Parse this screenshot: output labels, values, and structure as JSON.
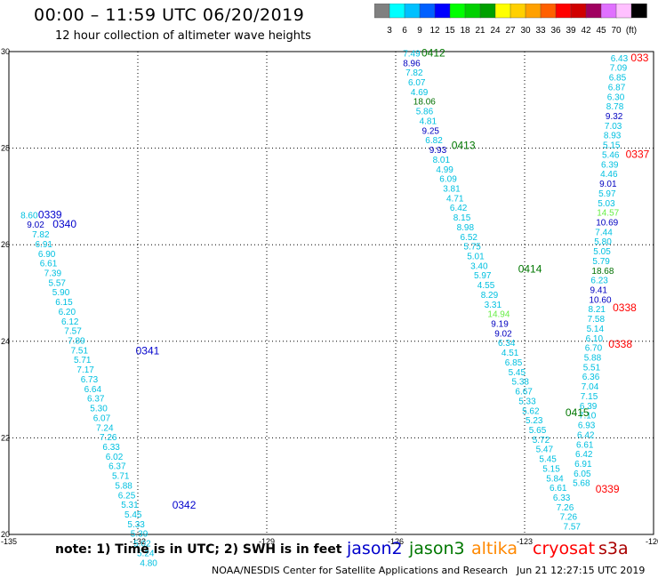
{
  "header": {
    "title": "00:00 – 11:59 UTC 06/20/2019",
    "subtitle": "12 hour collection of altimeter wave heights"
  },
  "colorbar": {
    "colors": [
      "#808080",
      "#00ffff",
      "#00c0ff",
      "#0060ff",
      "#0000ff",
      "#00ff00",
      "#00d000",
      "#00a000",
      "#ffff00",
      "#ffd000",
      "#ffa000",
      "#ff6000",
      "#ff0000",
      "#d00000",
      "#a00060",
      "#e070ff",
      "#ffc0ff",
      "#000000"
    ],
    "labels": [
      "3",
      "6",
      "9",
      "12",
      "15",
      "18",
      "21",
      "24",
      "27",
      "30",
      "33",
      "36",
      "39",
      "42",
      "45",
      "70",
      "(ft)"
    ]
  },
  "axes": {
    "x_ticks": [
      "-135",
      "-132",
      "-129",
      "-126",
      "-123",
      "-120"
    ],
    "y_ticks": [
      "30",
      "28",
      "26",
      "24",
      "22",
      "20"
    ]
  },
  "colors": {
    "jason2": "#0000cc",
    "jason3": "#007700",
    "altika": "#ff8800",
    "cryosat": "#ff0000",
    "s3a": "#cc0000",
    "value_light": "#00c0e0",
    "value_dark": "#0000c0",
    "value_green": "#007000",
    "value_lime": "#66ee44"
  },
  "tracks": [
    {
      "label": "0339",
      "label_color": "#0000cc",
      "label_lon": -134.32,
      "label_lat": 26.55
    },
    {
      "label": "0340",
      "label_color": "#0000cc",
      "label_lon": -133.98,
      "label_lat": 26.35
    },
    {
      "label": "0341",
      "label_color": "#0000cc",
      "label_lon": -132.05,
      "label_lat": 23.73
    },
    {
      "label": "0342",
      "label_color": "#0000cc",
      "label_lon": -131.2,
      "label_lat": 20.53
    },
    {
      "label": "0412",
      "label_color": "#007700",
      "label_lon": -125.4,
      "label_lat": 29.9
    },
    {
      "label": "0413",
      "label_color": "#007700",
      "label_lon": -124.7,
      "label_lat": 27.98
    },
    {
      "label": "0414",
      "label_color": "#007700",
      "label_lon": -123.15,
      "label_lat": 25.42
    },
    {
      "label": "0415",
      "label_color": "#007700",
      "label_lon": -122.05,
      "label_lat": 22.45
    },
    {
      "label": "033",
      "label_color": "#ff0000",
      "label_lon": -120.53,
      "label_lat": 29.8
    },
    {
      "label": "0337",
      "label_color": "#ff0000",
      "label_lon": -120.65,
      "label_lat": 27.8
    },
    {
      "label": "0338",
      "label_color": "#ff0000",
      "label_lon": -120.95,
      "label_lat": 24.62
    },
    {
      "label": "0338",
      "label_color": "#ff0000",
      "label_lon": -121.05,
      "label_lat": 23.87
    },
    {
      "label": "0339",
      "label_color": "#ff0000",
      "label_lon": -121.35,
      "label_lat": 20.87
    }
  ],
  "wave_heights": {
    "track_0339": {
      "color_key": "value_light",
      "points": [
        {
          "lon": -134.73,
          "lat": 26.55,
          "v": "8.60",
          "c": "value_light"
        },
        {
          "lon": -134.58,
          "lat": 26.35,
          "v": "9.02",
          "c": "value_dark"
        },
        {
          "lon": -134.46,
          "lat": 26.15,
          "v": "7.82",
          "c": "value_light"
        },
        {
          "lon": -134.39,
          "lat": 25.95,
          "v": "6.91",
          "c": "value_light"
        },
        {
          "lon": -134.32,
          "lat": 25.75,
          "v": "6.90",
          "c": "value_light"
        },
        {
          "lon": -134.28,
          "lat": 25.55,
          "v": "6.61",
          "c": "value_light"
        },
        {
          "lon": -134.18,
          "lat": 25.35,
          "v": "7.39",
          "c": "value_light"
        },
        {
          "lon": -134.08,
          "lat": 25.15,
          "v": "5.57",
          "c": "value_light"
        },
        {
          "lon": -133.99,
          "lat": 24.95,
          "v": "5.90",
          "c": "value_light"
        },
        {
          "lon": -133.92,
          "lat": 24.75,
          "v": "6.15",
          "c": "value_light"
        },
        {
          "lon": -133.85,
          "lat": 24.55,
          "v": "6.20",
          "c": "value_light"
        },
        {
          "lon": -133.78,
          "lat": 24.35,
          "v": "6.12",
          "c": "value_light"
        },
        {
          "lon": -133.71,
          "lat": 24.15,
          "v": "7.57",
          "c": "value_light"
        },
        {
          "lon": -133.63,
          "lat": 23.95,
          "v": "7.89",
          "c": "value_light"
        },
        {
          "lon": -133.56,
          "lat": 23.75,
          "v": "7.51",
          "c": "value_light"
        },
        {
          "lon": -133.49,
          "lat": 23.55,
          "v": "5.71",
          "c": "value_light"
        },
        {
          "lon": -133.42,
          "lat": 23.35,
          "v": "7.17",
          "c": "value_light"
        },
        {
          "lon": -133.33,
          "lat": 23.15,
          "v": "6.73",
          "c": "value_light"
        },
        {
          "lon": -133.25,
          "lat": 22.95,
          "v": "6.64",
          "c": "value_light"
        },
        {
          "lon": -133.18,
          "lat": 22.75,
          "v": "6.37",
          "c": "value_light"
        },
        {
          "lon": -133.11,
          "lat": 22.55,
          "v": "5.30",
          "c": "value_light"
        },
        {
          "lon": -133.04,
          "lat": 22.35,
          "v": "6.07",
          "c": "value_light"
        },
        {
          "lon": -132.97,
          "lat": 22.15,
          "v": "7.24",
          "c": "value_light"
        },
        {
          "lon": -132.89,
          "lat": 21.95,
          "v": "7.26",
          "c": "value_light"
        },
        {
          "lon": -132.82,
          "lat": 21.75,
          "v": "6.33",
          "c": "value_light"
        },
        {
          "lon": -132.75,
          "lat": 21.55,
          "v": "6.02",
          "c": "value_light"
        },
        {
          "lon": -132.68,
          "lat": 21.35,
          "v": "6.37",
          "c": "value_light"
        },
        {
          "lon": -132.6,
          "lat": 21.15,
          "v": "5.71",
          "c": "value_light"
        },
        {
          "lon": -132.53,
          "lat": 20.95,
          "v": "5.88",
          "c": "value_light"
        },
        {
          "lon": -132.46,
          "lat": 20.75,
          "v": "6.25",
          "c": "value_light"
        },
        {
          "lon": -132.39,
          "lat": 20.55,
          "v": "5.31",
          "c": "value_light"
        },
        {
          "lon": -132.31,
          "lat": 20.35,
          "v": "5.45",
          "c": "value_light"
        },
        {
          "lon": -132.24,
          "lat": 20.15,
          "v": "5.33",
          "c": "value_light"
        },
        {
          "lon": -132.17,
          "lat": 19.95,
          "v": "5.39",
          "c": "value_light"
        },
        {
          "lon": -132.1,
          "lat": 19.75,
          "v": "5.02",
          "c": "value_light"
        },
        {
          "lon": -132.02,
          "lat": 19.55,
          "v": "5.24",
          "c": "value_light"
        },
        {
          "lon": -131.95,
          "lat": 19.35,
          "v": "4.80",
          "c": "value_light"
        }
      ]
    },
    "track_0412": {
      "color_key": "value_light",
      "points": [
        {
          "lon": -125.83,
          "lat": 29.9,
          "v": "7.49",
          "c": "value_light"
        },
        {
          "lon": -125.83,
          "lat": 29.7,
          "v": "8.96",
          "c": "value_dark"
        },
        {
          "lon": -125.77,
          "lat": 29.5,
          "v": "7.82",
          "c": "value_light"
        },
        {
          "lon": -125.71,
          "lat": 29.3,
          "v": "6.07",
          "c": "value_light"
        },
        {
          "lon": -125.65,
          "lat": 29.1,
          "v": "4.69",
          "c": "value_light"
        },
        {
          "lon": -125.59,
          "lat": 28.9,
          "v": "18.06",
          "c": "value_green"
        },
        {
          "lon": -125.53,
          "lat": 28.7,
          "v": "5.86",
          "c": "value_light"
        },
        {
          "lon": -125.45,
          "lat": 28.5,
          "v": "4.81",
          "c": "value_light"
        },
        {
          "lon": -125.39,
          "lat": 28.3,
          "v": "9.25",
          "c": "value_dark"
        },
        {
          "lon": -125.31,
          "lat": 28.1,
          "v": "6.82",
          "c": "value_light"
        },
        {
          "lon": -125.22,
          "lat": 27.9,
          "v": "9.93",
          "c": "value_dark"
        },
        {
          "lon": -125.14,
          "lat": 27.7,
          "v": "8.01",
          "c": "value_light"
        },
        {
          "lon": -125.06,
          "lat": 27.5,
          "v": "4.99",
          "c": "value_light"
        },
        {
          "lon": -124.98,
          "lat": 27.3,
          "v": "6.09",
          "c": "value_light"
        },
        {
          "lon": -124.9,
          "lat": 27.1,
          "v": "3.81",
          "c": "value_light"
        },
        {
          "lon": -124.82,
          "lat": 26.9,
          "v": "4.71",
          "c": "value_light"
        },
        {
          "lon": -124.74,
          "lat": 26.7,
          "v": "6.42",
          "c": "value_light"
        },
        {
          "lon": -124.66,
          "lat": 26.5,
          "v": "8.15",
          "c": "value_light"
        },
        {
          "lon": -124.58,
          "lat": 26.3,
          "v": "8.98",
          "c": "value_light"
        },
        {
          "lon": -124.5,
          "lat": 26.1,
          "v": "6.52",
          "c": "value_light"
        },
        {
          "lon": -124.42,
          "lat": 25.9,
          "v": "5.75",
          "c": "value_light"
        },
        {
          "lon": -124.34,
          "lat": 25.7,
          "v": "5.01",
          "c": "value_light"
        },
        {
          "lon": -124.26,
          "lat": 25.5,
          "v": "3.40",
          "c": "value_light"
        },
        {
          "lon": -124.18,
          "lat": 25.3,
          "v": "5.97",
          "c": "value_light"
        },
        {
          "lon": -124.1,
          "lat": 25.1,
          "v": "4.55",
          "c": "value_light"
        },
        {
          "lon": -124.02,
          "lat": 24.9,
          "v": "8.29",
          "c": "value_light"
        },
        {
          "lon": -123.94,
          "lat": 24.7,
          "v": "3.31",
          "c": "value_light"
        },
        {
          "lon": -123.86,
          "lat": 24.5,
          "v": "14.94",
          "c": "value_lime"
        },
        {
          "lon": -123.78,
          "lat": 24.3,
          "v": "9.19",
          "c": "value_dark"
        },
        {
          "lon": -123.7,
          "lat": 24.1,
          "v": "9.02",
          "c": "value_dark"
        },
        {
          "lon": -123.62,
          "lat": 23.9,
          "v": "6.34",
          "c": "value_light"
        },
        {
          "lon": -123.54,
          "lat": 23.7,
          "v": "4.51",
          "c": "value_light"
        },
        {
          "lon": -123.46,
          "lat": 23.5,
          "v": "6.85",
          "c": "value_light"
        },
        {
          "lon": -123.38,
          "lat": 23.3,
          "v": "5.45",
          "c": "value_light"
        },
        {
          "lon": -123.3,
          "lat": 23.1,
          "v": "5.38",
          "c": "value_light"
        },
        {
          "lon": -123.22,
          "lat": 22.9,
          "v": "6.67",
          "c": "value_light"
        },
        {
          "lon": -123.14,
          "lat": 22.7,
          "v": "5.33",
          "c": "value_light"
        },
        {
          "lon": -123.06,
          "lat": 22.5,
          "v": "5.62",
          "c": "value_light"
        },
        {
          "lon": -122.98,
          "lat": 22.3,
          "v": "5.23",
          "c": "value_light"
        },
        {
          "lon": -122.9,
          "lat": 22.1,
          "v": "5.65",
          "c": "value_light"
        },
        {
          "lon": -122.82,
          "lat": 21.9,
          "v": "5.72",
          "c": "value_light"
        },
        {
          "lon": -122.74,
          "lat": 21.7,
          "v": "5.47",
          "c": "value_light"
        },
        {
          "lon": -122.66,
          "lat": 21.5,
          "v": "5.45",
          "c": "value_light"
        },
        {
          "lon": -122.58,
          "lat": 21.3,
          "v": "5.15",
          "c": "value_light"
        },
        {
          "lon": -122.5,
          "lat": 21.1,
          "v": "5.84",
          "c": "value_light"
        },
        {
          "lon": -122.42,
          "lat": 20.9,
          "v": "6.61",
          "c": "value_light"
        },
        {
          "lon": -122.34,
          "lat": 20.7,
          "v": "6.33",
          "c": "value_light"
        },
        {
          "lon": -122.26,
          "lat": 20.5,
          "v": "7.26",
          "c": "value_light"
        },
        {
          "lon": -122.18,
          "lat": 20.3,
          "v": "7.26",
          "c": "value_light"
        },
        {
          "lon": -122.1,
          "lat": 20.1,
          "v": "7.57",
          "c": "value_light"
        }
      ]
    },
    "track_033": {
      "color_key": "value_light",
      "points": [
        {
          "lon": -121.0,
          "lat": 29.8,
          "v": "6.43",
          "c": "value_light"
        },
        {
          "lon": -121.02,
          "lat": 29.6,
          "v": "7.09",
          "c": "value_light"
        },
        {
          "lon": -121.04,
          "lat": 29.4,
          "v": "6.85",
          "c": "value_light"
        },
        {
          "lon": -121.06,
          "lat": 29.2,
          "v": "6.87",
          "c": "value_light"
        },
        {
          "lon": -121.08,
          "lat": 29.0,
          "v": "6.30",
          "c": "value_light"
        },
        {
          "lon": -121.1,
          "lat": 28.8,
          "v": "8.78",
          "c": "value_light"
        },
        {
          "lon": -121.12,
          "lat": 28.6,
          "v": "9.32",
          "c": "value_dark"
        },
        {
          "lon": -121.14,
          "lat": 28.4,
          "v": "7.03",
          "c": "value_light"
        },
        {
          "lon": -121.16,
          "lat": 28.2,
          "v": "8.93",
          "c": "value_light"
        },
        {
          "lon": -121.18,
          "lat": 28.0,
          "v": "5.15",
          "c": "value_light"
        },
        {
          "lon": -121.2,
          "lat": 27.8,
          "v": "5.46",
          "c": "value_light"
        },
        {
          "lon": -121.22,
          "lat": 27.6,
          "v": "6.39",
          "c": "value_light"
        },
        {
          "lon": -121.24,
          "lat": 27.4,
          "v": "4.46",
          "c": "value_light"
        },
        {
          "lon": -121.26,
          "lat": 27.2,
          "v": "9.01",
          "c": "value_dark"
        },
        {
          "lon": -121.28,
          "lat": 27.0,
          "v": "5.97",
          "c": "value_light"
        },
        {
          "lon": -121.3,
          "lat": 26.8,
          "v": "5.03",
          "c": "value_light"
        },
        {
          "lon": -121.32,
          "lat": 26.6,
          "v": "14.57",
          "c": "value_lime"
        },
        {
          "lon": -121.34,
          "lat": 26.4,
          "v": "10.69",
          "c": "value_dark"
        },
        {
          "lon": -121.36,
          "lat": 26.2,
          "v": "7.44",
          "c": "value_light"
        },
        {
          "lon": -121.38,
          "lat": 26.0,
          "v": "5.80",
          "c": "value_light"
        },
        {
          "lon": -121.4,
          "lat": 25.8,
          "v": "5.05",
          "c": "value_light"
        },
        {
          "lon": -121.42,
          "lat": 25.6,
          "v": "5.79",
          "c": "value_light"
        },
        {
          "lon": -121.44,
          "lat": 25.4,
          "v": "18.68",
          "c": "value_green"
        },
        {
          "lon": -121.46,
          "lat": 25.2,
          "v": "6.23",
          "c": "value_light"
        },
        {
          "lon": -121.48,
          "lat": 25.0,
          "v": "9.41",
          "c": "value_dark"
        },
        {
          "lon": -121.5,
          "lat": 24.8,
          "v": "10.60",
          "c": "value_dark"
        },
        {
          "lon": -121.52,
          "lat": 24.6,
          "v": "8.21",
          "c": "value_light"
        },
        {
          "lon": -121.54,
          "lat": 24.4,
          "v": "7.58",
          "c": "value_light"
        },
        {
          "lon": -121.56,
          "lat": 24.2,
          "v": "5.14",
          "c": "value_light"
        },
        {
          "lon": -121.58,
          "lat": 24.0,
          "v": "6.10",
          "c": "value_light"
        },
        {
          "lon": -121.6,
          "lat": 23.8,
          "v": "6.70",
          "c": "value_light"
        },
        {
          "lon": -121.62,
          "lat": 23.6,
          "v": "5.88",
          "c": "value_light"
        },
        {
          "lon": -121.64,
          "lat": 23.4,
          "v": "5.51",
          "c": "value_light"
        },
        {
          "lon": -121.66,
          "lat": 23.2,
          "v": "6.36",
          "c": "value_light"
        },
        {
          "lon": -121.68,
          "lat": 23.0,
          "v": "7.04",
          "c": "value_light"
        },
        {
          "lon": -121.7,
          "lat": 22.8,
          "v": "7.15",
          "c": "value_light"
        },
        {
          "lon": -121.72,
          "lat": 22.6,
          "v": "6.39",
          "c": "value_light"
        },
        {
          "lon": -121.74,
          "lat": 22.4,
          "v": "7.10",
          "c": "value_light"
        },
        {
          "lon": -121.76,
          "lat": 22.2,
          "v": "6.93",
          "c": "value_light"
        },
        {
          "lon": -121.78,
          "lat": 22.0,
          "v": "6.42",
          "c": "value_light"
        },
        {
          "lon": -121.8,
          "lat": 21.8,
          "v": "6.61",
          "c": "value_light"
        },
        {
          "lon": -121.82,
          "lat": 21.6,
          "v": "6.42",
          "c": "value_light"
        },
        {
          "lon": -121.84,
          "lat": 21.4,
          "v": "6.91",
          "c": "value_light"
        },
        {
          "lon": -121.86,
          "lat": 21.2,
          "v": "6.05",
          "c": "value_light"
        },
        {
          "lon": -121.88,
          "lat": 21.0,
          "v": "5.68",
          "c": "value_light"
        }
      ]
    }
  },
  "footer": {
    "note": "note: 1) Time is in UTC; 2) SWH is in feet",
    "legend": [
      {
        "name": "jason2",
        "color": "#0000cc"
      },
      {
        "name": "jason3",
        "color": "#007700"
      },
      {
        "name": "altika",
        "color": "#ff8800"
      },
      {
        "name": "cryosat",
        "color": "#ff0000"
      },
      {
        "name": "s3a",
        "color": "#aa0000"
      }
    ],
    "credit": "NOAA/NESDIS Center for Satellite Applications and Research",
    "timestamp": "Jun 21 12:27:15 UTC 2019"
  }
}
